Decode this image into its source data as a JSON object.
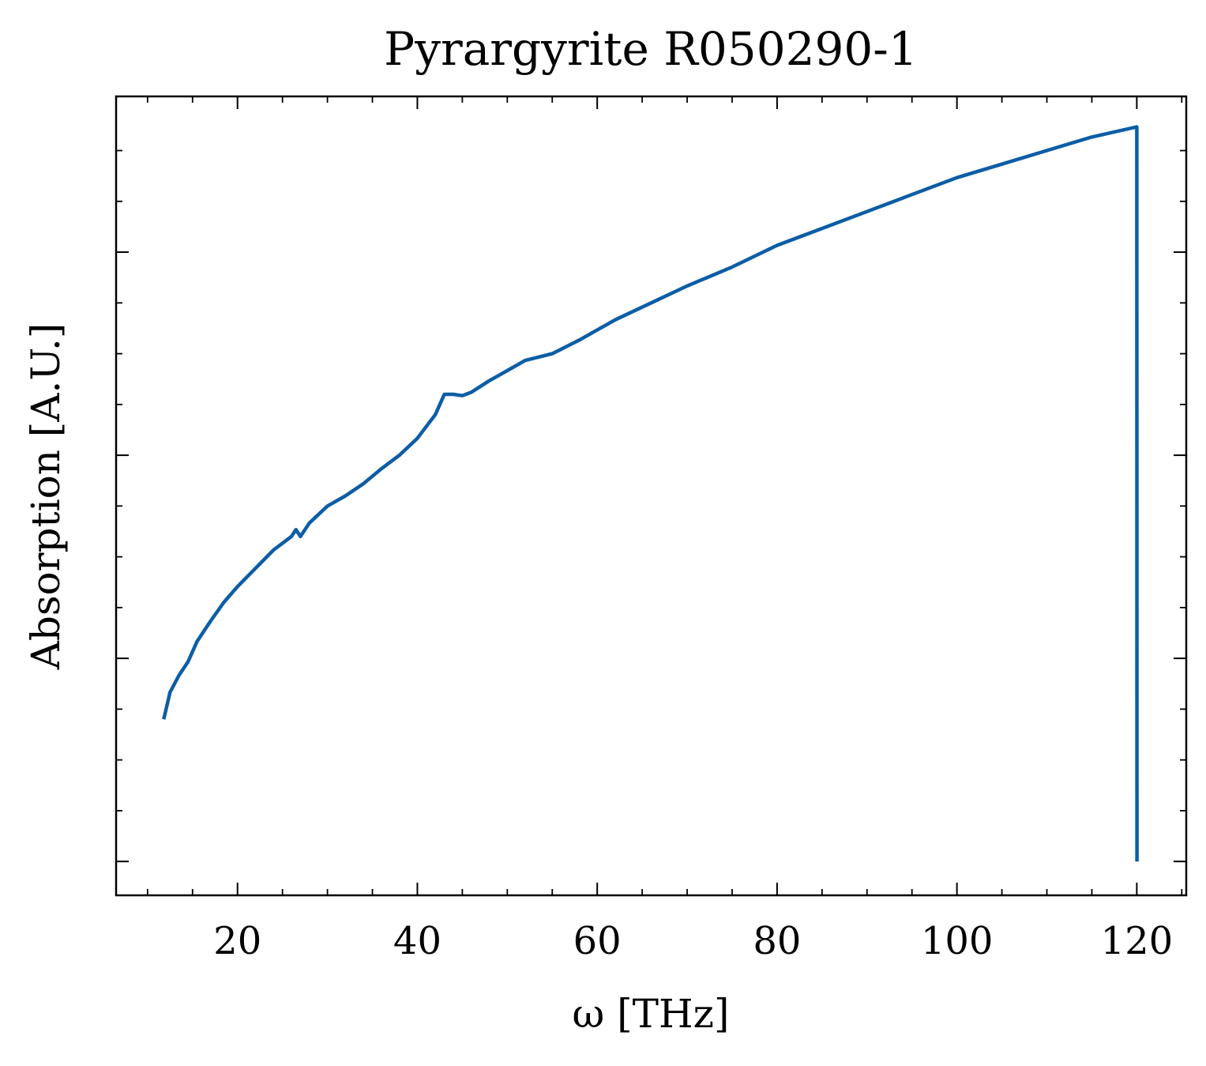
{
  "chart_data": {
    "type": "line",
    "title": "Pyrargyrite R050290-1",
    "xlabel": "ω [THz]",
    "ylabel": "Absorption [A.U.]",
    "xlim": [
      6.5,
      125.5
    ],
    "ylim": [
      -0.05,
      1.13
    ],
    "x_ticks": [
      20,
      40,
      60,
      80,
      100,
      120
    ],
    "x_tick_labels": [
      "20",
      "40",
      "60",
      "80",
      "100",
      "120"
    ],
    "y_ticks": [
      0.0,
      0.3,
      0.6,
      0.9
    ],
    "y_tick_labels_visible": false,
    "grid": false,
    "legend": "none",
    "series": [
      {
        "color": "#0C5DA5",
        "x": [
          11.8,
          12.5,
          13.5,
          14.5,
          15.5,
          17,
          18.5,
          20,
          22,
          24,
          26,
          26.5,
          27,
          28,
          30,
          32,
          34,
          36,
          38,
          40,
          42,
          43,
          44,
          45,
          46,
          48,
          50,
          52,
          55,
          58,
          62,
          66,
          70,
          75,
          80,
          85,
          90,
          95,
          100,
          105,
          110,
          115,
          120,
          120.02
        ],
        "y": [
          0.21,
          0.25,
          0.275,
          0.295,
          0.325,
          0.355,
          0.383,
          0.406,
          0.433,
          0.46,
          0.48,
          0.49,
          0.48,
          0.5,
          0.525,
          0.54,
          0.558,
          0.58,
          0.6,
          0.625,
          0.66,
          0.69,
          0.69,
          0.688,
          0.693,
          0.71,
          0.725,
          0.74,
          0.75,
          0.77,
          0.8,
          0.825,
          0.85,
          0.878,
          0.91,
          0.935,
          0.96,
          0.985,
          1.01,
          1.03,
          1.05,
          1.07,
          1.085,
          0.0
        ]
      }
    ]
  }
}
